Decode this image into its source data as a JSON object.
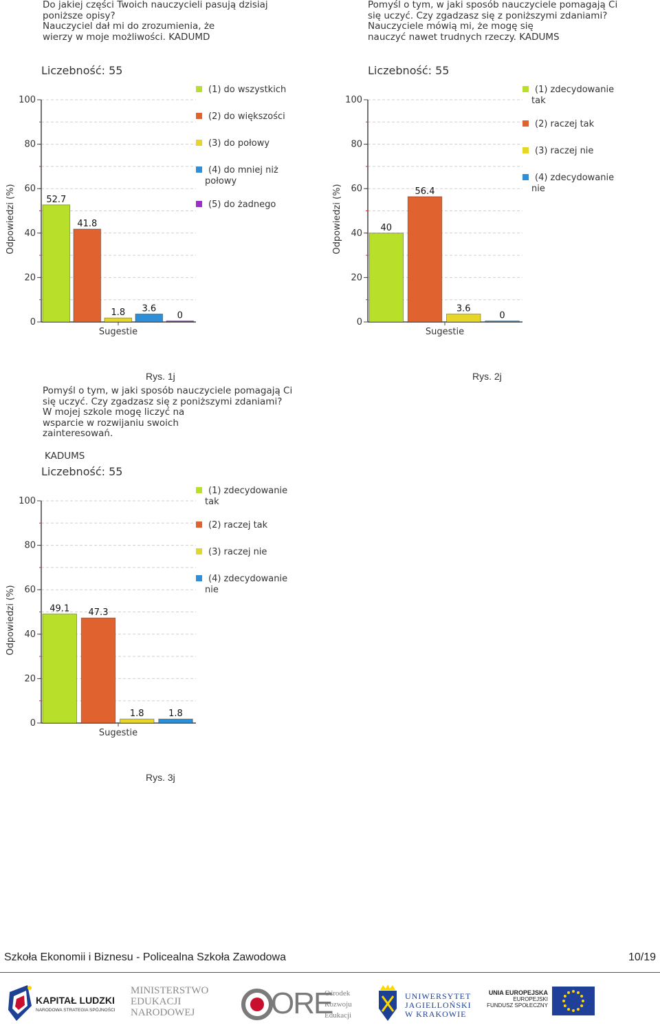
{
  "charts": [
    {
      "question": "Do jakiej części Twoich nauczycieli pasują dzisiaj\nponiższe opisy?\nNauczyciel dał mi do zrozumienia, że\nwierzy w moje możliwości. KADUMD",
      "count_label": "Liczebność: 55",
      "caption": "Rys. 1j"
    },
    {
      "question": "Pomyśl o tym, w jaki sposób nauczyciele pomagają Ci\nsię uczyć. Czy zgadzasz się z poniższymi zdaniami?\nNauczyciele mówią mi, że mogę się\nnauczyć nawet trudnych rzeczy. KADUMS",
      "count_label": "Liczebność: 55",
      "caption": "Rys. 2j"
    },
    {
      "question": "Pomyśl o tym, w jaki sposób nauczyciele pomagają Ci\nsię uczyć. Czy zgadzasz się z poniższymi zdaniami?\nW  mojej szkole mogę liczyć na\nwsparcie w rozwijaniu swoich\nzainteresowań.",
      "question_code": "KADUMS",
      "count_label": "Liczebność: 55",
      "caption": "Rys. 3j"
    }
  ],
  "chart_data": [
    {
      "type": "bar",
      "ylabel": "Odpowiedzi (%)",
      "xlabel": "Sugestie",
      "ylim": [
        0,
        100
      ],
      "yticks": [
        0,
        20,
        40,
        60,
        80,
        100
      ],
      "grid": true,
      "legend_position": "right",
      "series": [
        {
          "name": "(1) do wszystkich",
          "value": 52.7,
          "label": "52.7",
          "color": "#b8e02b"
        },
        {
          "name": "(2) do większości",
          "value": 41.8,
          "label": "41.8",
          "color": "#e0622e"
        },
        {
          "name": "(3) do połowy",
          "value": 1.8,
          "label": "1.8",
          "color": "#e6d62a"
        },
        {
          "name": "(4) do mniej niż połowy",
          "value": 3.6,
          "label": "3.6",
          "color": "#2e8fd8"
        },
        {
          "name": "(5) do żadnego",
          "value": 0,
          "label": "0",
          "color": "#9b2fc6"
        }
      ]
    },
    {
      "type": "bar",
      "ylabel": "Odpowiedzi (%)",
      "xlabel": "Sugestie",
      "ylim": [
        0,
        100
      ],
      "yticks": [
        0,
        20,
        40,
        60,
        80,
        100
      ],
      "grid": true,
      "legend_position": "right",
      "series": [
        {
          "name": "(1) zdecydowanie tak",
          "value": 40,
          "label": "40",
          "color": "#b8e02b"
        },
        {
          "name": "(2) raczej tak",
          "value": 56.4,
          "label": "56.4",
          "color": "#e0622e"
        },
        {
          "name": "(3) raczej nie",
          "value": 3.6,
          "label": "3.6",
          "color": "#e6d62a"
        },
        {
          "name": "(4) zdecydowanie nie",
          "value": 0,
          "label": "0",
          "color": "#2e8fd8"
        }
      ]
    },
    {
      "type": "bar",
      "ylabel": "Odpowiedzi (%)",
      "xlabel": "Sugestie",
      "ylim": [
        0,
        100
      ],
      "yticks": [
        0,
        20,
        40,
        60,
        80,
        100
      ],
      "grid": true,
      "legend_position": "right",
      "series": [
        {
          "name": "(1) zdecydowanie tak",
          "value": 49.1,
          "label": "49.1",
          "color": "#b8e02b"
        },
        {
          "name": "(2) raczej tak",
          "value": 47.3,
          "label": "47.3",
          "color": "#e0622e"
        },
        {
          "name": "(3) raczej nie",
          "value": 1.8,
          "label": "1.8",
          "color": "#e6d62a"
        },
        {
          "name": "(4) zdecydowanie nie",
          "value": 1.8,
          "label": "1.8",
          "color": "#2e8fd8"
        }
      ]
    }
  ],
  "footer": {
    "school": "Szkoła Ekonomii i Biznesu - Policealna Szkoła Zawodowa",
    "page": "10/19"
  },
  "logos": {
    "kapital_ludzki": {
      "title": "KAPITAŁ LUDZKI",
      "subtitle": "NARODOWA STRATEGIA SPÓJNOŚCI"
    },
    "men": {
      "line1": "MINISTERSTWO",
      "line2": "EDUKACJI",
      "line3": "NARODOWEJ"
    },
    "ore": {
      "mark": "ORE",
      "line1": "Ośrodek",
      "line2": "Rozwoju",
      "line3": "Edukacji"
    },
    "uj": {
      "line1": "UNIWERSYTET",
      "line2": "JAGIELLOŃSKI",
      "line3": "W KRAKOWIE"
    },
    "eu": {
      "line1": "UNIA EUROPEJSKA",
      "line2": "EUROPEJSKI",
      "line3": "FUNDUSZ SPOŁECZNY"
    },
    "colors": {
      "ore_red": "#c8102e",
      "eu_blue": "#1f3f99",
      "eu_star": "#ffd700",
      "kl_blue": "#1d3f94"
    }
  }
}
